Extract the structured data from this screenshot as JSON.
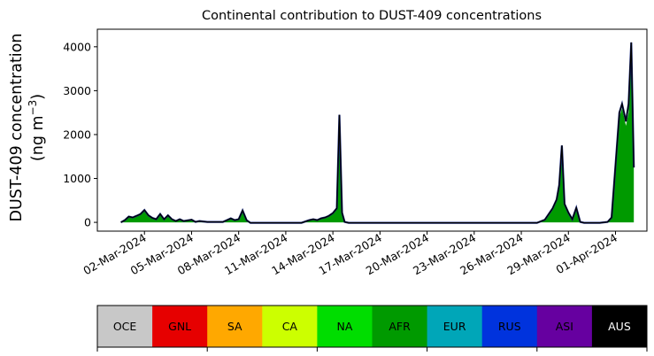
{
  "chart_data": {
    "type": "area",
    "title": "Continental contribution to DUST-409 concentrations",
    "ylabel_line1": "DUST-409 concentration",
    "ylabel_line2_prefix": "(ng m",
    "ylabel_line2_sup": "−3",
    "ylabel_line2_suffix": ")",
    "xlabel": "",
    "x_range": [
      "2024-02-28",
      "2024-04-03"
    ],
    "ylim": [
      -200,
      4400
    ],
    "yticks": [
      0,
      1000,
      2000,
      3000,
      4000
    ],
    "xtick_dates": [
      "2024-03-02",
      "2024-03-05",
      "2024-03-08",
      "2024-03-11",
      "2024-03-14",
      "2024-03-17",
      "2024-03-20",
      "2024-03-23",
      "2024-03-26",
      "2024-03-29",
      "2024-04-01"
    ],
    "xtick_labels": [
      "02-Mar-2024",
      "05-Mar-2024",
      "08-Mar-2024",
      "11-Mar-2024",
      "14-Mar-2024",
      "17-Mar-2024",
      "20-Mar-2024",
      "23-Mar-2024",
      "26-Mar-2024",
      "29-Mar-2024",
      "01-Apr-2024"
    ],
    "legend": {
      "entries": [
        {
          "label": "OCE",
          "color": "#c8c8c8",
          "text_color": "#000000"
        },
        {
          "label": "GNL",
          "color": "#e60000",
          "text_color": "#000000"
        },
        {
          "label": "SA",
          "color": "#ffa800",
          "text_color": "#000000"
        },
        {
          "label": "CA",
          "color": "#ccff00",
          "text_color": "#000000"
        },
        {
          "label": "NA",
          "color": "#00dd00",
          "text_color": "#000000"
        },
        {
          "label": "AFR",
          "color": "#009a00",
          "text_color": "#000000"
        },
        {
          "label": "EUR",
          "color": "#00a6b8",
          "text_color": "#000000"
        },
        {
          "label": "RUS",
          "color": "#0033dd",
          "text_color": "#000000"
        },
        {
          "label": "ASI",
          "color": "#6600a0",
          "text_color": "#000000"
        },
        {
          "label": "AUS",
          "color": "#000000",
          "text_color": "#ffffff"
        }
      ]
    },
    "series": [
      {
        "color": "#009a00",
        "points": [
          [
            "2024-02-29T12:00",
            0
          ],
          [
            "2024-02-29T18:00",
            40
          ],
          [
            "2024-03-01T00:00",
            120
          ],
          [
            "2024-03-01T06:00",
            100
          ],
          [
            "2024-03-01T12:00",
            140
          ],
          [
            "2024-03-01T18:00",
            180
          ],
          [
            "2024-03-02T00:00",
            260
          ],
          [
            "2024-03-02T06:00",
            150
          ],
          [
            "2024-03-02T12:00",
            90
          ],
          [
            "2024-03-02T18:00",
            60
          ],
          [
            "2024-03-03T00:00",
            180
          ],
          [
            "2024-03-03T06:00",
            60
          ],
          [
            "2024-03-03T12:00",
            150
          ],
          [
            "2024-03-03T18:00",
            60
          ],
          [
            "2024-03-04T00:00",
            20
          ],
          [
            "2024-03-04T06:00",
            60
          ],
          [
            "2024-03-04T12:00",
            20
          ],
          [
            "2024-03-05T00:00",
            50
          ],
          [
            "2024-03-05T06:00",
            0
          ],
          [
            "2024-03-05T12:00",
            20
          ],
          [
            "2024-03-06T00:00",
            0
          ],
          [
            "2024-03-07T00:00",
            0
          ],
          [
            "2024-03-07T12:00",
            80
          ],
          [
            "2024-03-07T18:00",
            40
          ],
          [
            "2024-03-08T00:00",
            60
          ],
          [
            "2024-03-08T06:00",
            250
          ],
          [
            "2024-03-08T12:00",
            40
          ],
          [
            "2024-03-08T18:00",
            -20
          ],
          [
            "2024-03-10T00:00",
            -20
          ],
          [
            "2024-03-12T00:00",
            -20
          ],
          [
            "2024-03-12T12:00",
            40
          ],
          [
            "2024-03-12T18:00",
            60
          ],
          [
            "2024-03-13T00:00",
            40
          ],
          [
            "2024-03-13T06:00",
            80
          ],
          [
            "2024-03-13T12:00",
            100
          ],
          [
            "2024-03-13T18:00",
            140
          ],
          [
            "2024-03-14T00:00",
            200
          ],
          [
            "2024-03-14T06:00",
            300
          ],
          [
            "2024-03-14T10:00",
            2400
          ],
          [
            "2024-03-14T14:00",
            200
          ],
          [
            "2024-03-14T18:00",
            0
          ],
          [
            "2024-03-15T00:00",
            -20
          ],
          [
            "2024-03-18T00:00",
            -20
          ],
          [
            "2024-03-22T00:00",
            -20
          ],
          [
            "2024-03-26T00:00",
            -20
          ],
          [
            "2024-03-27T00:00",
            -20
          ],
          [
            "2024-03-27T12:00",
            50
          ],
          [
            "2024-03-28T00:00",
            300
          ],
          [
            "2024-03-28T06:00",
            500
          ],
          [
            "2024-03-28T10:00",
            800
          ],
          [
            "2024-03-28T14:00",
            1600
          ],
          [
            "2024-03-28T18:00",
            400
          ],
          [
            "2024-03-29T00:00",
            200
          ],
          [
            "2024-03-29T06:00",
            60
          ],
          [
            "2024-03-29T12:00",
            300
          ],
          [
            "2024-03-29T18:00",
            0
          ],
          [
            "2024-03-30T00:00",
            -20
          ],
          [
            "2024-03-31T00:00",
            -20
          ],
          [
            "2024-03-31T12:00",
            0
          ],
          [
            "2024-03-31T18:00",
            100
          ],
          [
            "2024-04-01T00:00",
            1200
          ],
          [
            "2024-04-01T06:00",
            2400
          ],
          [
            "2024-04-01T10:00",
            2600
          ],
          [
            "2024-04-01T16:00",
            2200
          ],
          [
            "2024-04-01T20:00",
            2500
          ],
          [
            "2024-04-02T00:00",
            3800
          ],
          [
            "2024-04-02T04:00",
            1200
          ]
        ]
      }
    ],
    "outline_series": {
      "color": "#000000",
      "points": [
        [
          "2024-02-29T12:00",
          0
        ],
        [
          "2024-02-29T18:00",
          50
        ],
        [
          "2024-03-01T00:00",
          130
        ],
        [
          "2024-03-01T06:00",
          110
        ],
        [
          "2024-03-01T12:00",
          150
        ],
        [
          "2024-03-01T18:00",
          190
        ],
        [
          "2024-03-02T00:00",
          280
        ],
        [
          "2024-03-02T06:00",
          160
        ],
        [
          "2024-03-02T12:00",
          100
        ],
        [
          "2024-03-02T18:00",
          70
        ],
        [
          "2024-03-03T00:00",
          190
        ],
        [
          "2024-03-03T06:00",
          70
        ],
        [
          "2024-03-03T12:00",
          160
        ],
        [
          "2024-03-03T18:00",
          70
        ],
        [
          "2024-03-04T00:00",
          30
        ],
        [
          "2024-03-04T06:00",
          70
        ],
        [
          "2024-03-04T12:00",
          30
        ],
        [
          "2024-03-05T00:00",
          60
        ],
        [
          "2024-03-05T06:00",
          10
        ],
        [
          "2024-03-05T12:00",
          30
        ],
        [
          "2024-03-06T00:00",
          10
        ],
        [
          "2024-03-07T00:00",
          10
        ],
        [
          "2024-03-07T12:00",
          90
        ],
        [
          "2024-03-07T18:00",
          50
        ],
        [
          "2024-03-08T00:00",
          70
        ],
        [
          "2024-03-08T06:00",
          270
        ],
        [
          "2024-03-08T12:00",
          50
        ],
        [
          "2024-03-08T18:00",
          -10
        ],
        [
          "2024-03-10T00:00",
          -10
        ],
        [
          "2024-03-12T00:00",
          -10
        ],
        [
          "2024-03-12T12:00",
          50
        ],
        [
          "2024-03-12T18:00",
          70
        ],
        [
          "2024-03-13T00:00",
          50
        ],
        [
          "2024-03-13T06:00",
          90
        ],
        [
          "2024-03-13T12:00",
          110
        ],
        [
          "2024-03-13T18:00",
          150
        ],
        [
          "2024-03-14T00:00",
          210
        ],
        [
          "2024-03-14T06:00",
          320
        ],
        [
          "2024-03-14T10:00",
          2450
        ],
        [
          "2024-03-14T14:00",
          220
        ],
        [
          "2024-03-14T18:00",
          10
        ],
        [
          "2024-03-15T00:00",
          -10
        ],
        [
          "2024-03-18T00:00",
          -10
        ],
        [
          "2024-03-22T00:00",
          -10
        ],
        [
          "2024-03-26T00:00",
          -10
        ],
        [
          "2024-03-27T00:00",
          -10
        ],
        [
          "2024-03-27T12:00",
          60
        ],
        [
          "2024-03-28T00:00",
          320
        ],
        [
          "2024-03-28T06:00",
          520
        ],
        [
          "2024-03-28T10:00",
          850
        ],
        [
          "2024-03-28T14:00",
          1750
        ],
        [
          "2024-03-28T18:00",
          420
        ],
        [
          "2024-03-29T00:00",
          220
        ],
        [
          "2024-03-29T06:00",
          70
        ],
        [
          "2024-03-29T12:00",
          330
        ],
        [
          "2024-03-29T18:00",
          10
        ],
        [
          "2024-03-30T00:00",
          -10
        ],
        [
          "2024-03-31T00:00",
          -10
        ],
        [
          "2024-03-31T12:00",
          10
        ],
        [
          "2024-03-31T18:00",
          110
        ],
        [
          "2024-04-01T00:00",
          1300
        ],
        [
          "2024-04-01T06:00",
          2500
        ],
        [
          "2024-04-01T10:00",
          2700
        ],
        [
          "2024-04-01T16:00",
          2300
        ],
        [
          "2024-04-01T20:00",
          2700
        ],
        [
          "2024-04-02T00:00",
          4100
        ],
        [
          "2024-04-02T04:00",
          1250
        ]
      ]
    }
  }
}
